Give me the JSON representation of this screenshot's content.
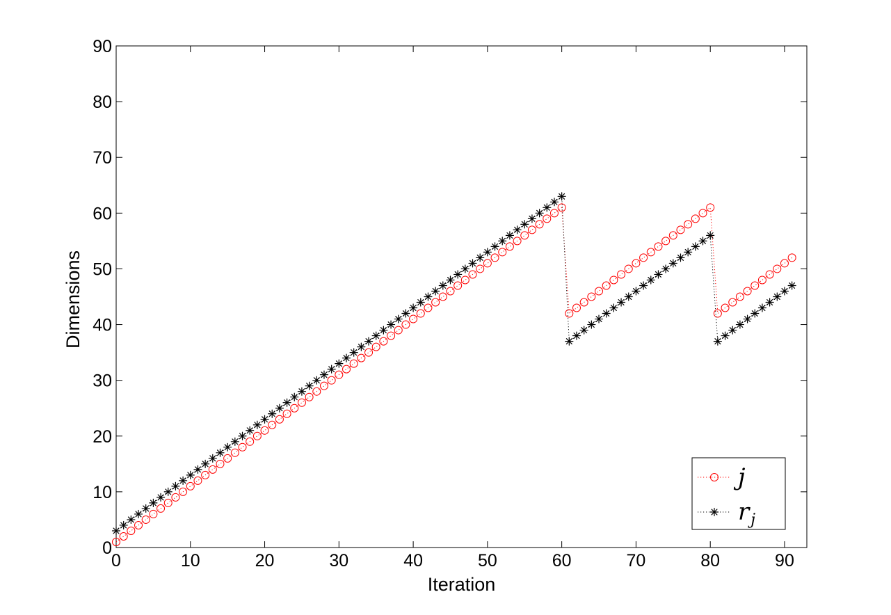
{
  "chart_data": {
    "type": "scatter",
    "xlabel": "Iteration",
    "ylabel": "Dimensions",
    "xlim": [
      0,
      93
    ],
    "ylim": [
      0,
      90
    ],
    "xticks": [
      0,
      10,
      20,
      30,
      40,
      50,
      60,
      70,
      80,
      90
    ],
    "yticks": [
      0,
      10,
      20,
      30,
      40,
      50,
      60,
      70,
      80,
      90
    ],
    "grid": false,
    "legend_position": "bottom-right",
    "series": [
      {
        "name": "j",
        "marker": "circle",
        "color": "#ff0000",
        "linestyle": "dotted",
        "x": [
          0,
          1,
          2,
          3,
          4,
          5,
          6,
          7,
          8,
          9,
          10,
          11,
          12,
          13,
          14,
          15,
          16,
          17,
          18,
          19,
          20,
          21,
          22,
          23,
          24,
          25,
          26,
          27,
          28,
          29,
          30,
          31,
          32,
          33,
          34,
          35,
          36,
          37,
          38,
          39,
          40,
          41,
          42,
          43,
          44,
          45,
          46,
          47,
          48,
          49,
          50,
          51,
          52,
          53,
          54,
          55,
          56,
          57,
          58,
          59,
          60,
          61,
          62,
          63,
          64,
          65,
          66,
          67,
          68,
          69,
          70,
          71,
          72,
          73,
          74,
          75,
          76,
          77,
          78,
          79,
          80,
          81,
          82,
          83,
          84,
          85,
          86,
          87,
          88,
          89,
          90,
          91
        ],
        "y": [
          1,
          2,
          3,
          4,
          5,
          6,
          7,
          8,
          9,
          10,
          11,
          12,
          13,
          14,
          15,
          16,
          17,
          18,
          19,
          20,
          21,
          22,
          23,
          24,
          25,
          26,
          27,
          28,
          29,
          30,
          31,
          32,
          33,
          34,
          35,
          36,
          37,
          38,
          39,
          40,
          41,
          42,
          43,
          44,
          45,
          46,
          47,
          48,
          49,
          50,
          51,
          52,
          53,
          54,
          55,
          56,
          57,
          58,
          59,
          60,
          61,
          42,
          43,
          44,
          45,
          46,
          47,
          48,
          49,
          50,
          51,
          52,
          53,
          54,
          55,
          56,
          57,
          58,
          59,
          60,
          61,
          42,
          43,
          44,
          45,
          46,
          47,
          48,
          49,
          50,
          51,
          52
        ]
      },
      {
        "name": "r",
        "name_subscript": "j",
        "marker": "asterisk",
        "color": "#000000",
        "linestyle": "dotted",
        "x": [
          0,
          1,
          2,
          3,
          4,
          5,
          6,
          7,
          8,
          9,
          10,
          11,
          12,
          13,
          14,
          15,
          16,
          17,
          18,
          19,
          20,
          21,
          22,
          23,
          24,
          25,
          26,
          27,
          28,
          29,
          30,
          31,
          32,
          33,
          34,
          35,
          36,
          37,
          38,
          39,
          40,
          41,
          42,
          43,
          44,
          45,
          46,
          47,
          48,
          49,
          50,
          51,
          52,
          53,
          54,
          55,
          56,
          57,
          58,
          59,
          60,
          61,
          62,
          63,
          64,
          65,
          66,
          67,
          68,
          69,
          70,
          71,
          72,
          73,
          74,
          75,
          76,
          77,
          78,
          79,
          80,
          81,
          82,
          83,
          84,
          85,
          86,
          87,
          88,
          89,
          90,
          91
        ],
        "y": [
          3,
          4,
          5,
          6,
          7,
          8,
          9,
          10,
          11,
          12,
          13,
          14,
          15,
          16,
          17,
          18,
          19,
          20,
          21,
          22,
          23,
          24,
          25,
          26,
          27,
          28,
          29,
          30,
          31,
          32,
          33,
          34,
          35,
          36,
          37,
          38,
          39,
          40,
          41,
          42,
          43,
          44,
          45,
          46,
          47,
          48,
          49,
          50,
          51,
          52,
          53,
          54,
          55,
          56,
          57,
          58,
          59,
          60,
          61,
          62,
          63,
          37,
          38,
          39,
          40,
          41,
          42,
          43,
          44,
          45,
          46,
          47,
          48,
          49,
          50,
          51,
          52,
          53,
          54,
          55,
          56,
          37,
          38,
          39,
          40,
          41,
          42,
          43,
          44,
          45,
          46,
          47
        ]
      }
    ]
  }
}
